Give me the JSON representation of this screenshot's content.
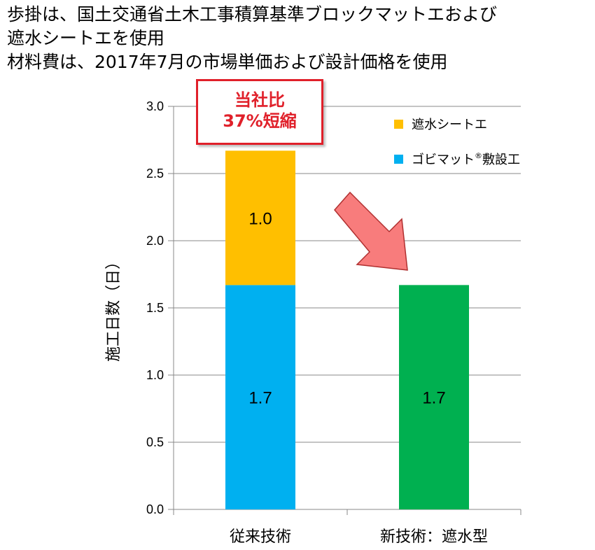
{
  "header": {
    "lines": [
      "歩掛は、国土交通省土木工事積算基準ブロックマットエおよび",
      "遮水シートエを使用",
      "材料費は、2017年7月の市場単価および設計価格を使用"
    ]
  },
  "callout": {
    "line1": "当社比",
    "line2": "37%短縮"
  },
  "colors": {
    "sheet": "#ffbf00",
    "gobimat": "#00b0f0",
    "new": "#00b050",
    "arrow": "#f87c7c",
    "callout": "#e0202a"
  },
  "chart_data": {
    "type": "bar",
    "stacked": true,
    "categories": [
      "従来技術",
      "新技術：遮水型"
    ],
    "ylabel": "施工日数（日）",
    "ylim": [
      0,
      3.0
    ],
    "yticks": [
      "0.0",
      "0.5",
      "1.0",
      "1.5",
      "2.0",
      "2.5",
      "3.0"
    ],
    "grid": true,
    "legend_position": "top-right",
    "legend": [
      {
        "name": "遮水シートエ",
        "color": "#ffbf00"
      },
      {
        "name": "ゴビマット",
        "sup": "®",
        "suffix": "敷設工",
        "color": "#00b0f0"
      }
    ],
    "bars": [
      {
        "category": "従来技術",
        "segments": [
          {
            "series": "ゴビマット敷設工",
            "value": 1.67,
            "label": "1.7",
            "color": "#00b0f0"
          },
          {
            "series": "遮水シートエ",
            "value": 1.0,
            "label": "1.0",
            "color": "#ffbf00"
          }
        ]
      },
      {
        "category": "新技術：遮水型",
        "segments": [
          {
            "series": "新技術",
            "value": 1.67,
            "label": "1.7",
            "color": "#00b050"
          }
        ]
      }
    ]
  }
}
